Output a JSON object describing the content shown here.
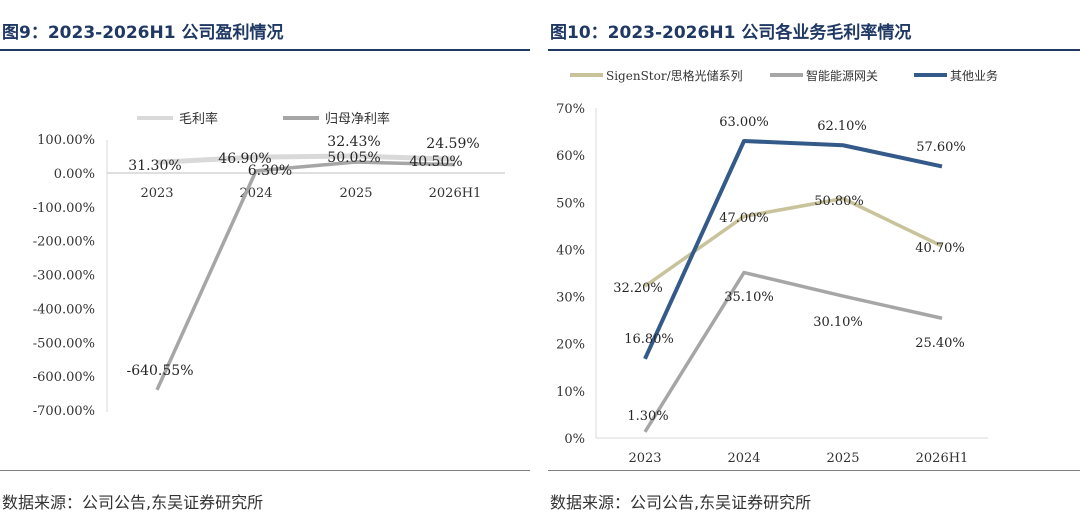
{
  "charts": [
    {
      "title": "图9：2023-2026H1 公司盈利情况",
      "source": "数据来源：公司公告,东吴证券研究所",
      "chart_data": {
        "type": "line",
        "categories": [
          "2023",
          "2024",
          "2025",
          "2026H1"
        ],
        "series": [
          {
            "name": "毛利率",
            "values": [
              31.3,
              46.9,
              50.05,
              40.5
            ],
            "labels": [
              "31.30%",
              "46.90%",
              "50.05%",
              "40.50%"
            ],
            "color": "#d9d9d9"
          },
          {
            "name": "归母净利率",
            "values": [
              -640.55,
              6.3,
              32.43,
              24.59
            ],
            "labels": [
              "-640.55%",
              "6.30%",
              "32.43%",
              "24.59%"
            ],
            "color": "#a6a6a6"
          }
        ],
        "ylim": [
          -700,
          100
        ],
        "yticks": [
          "100.00%",
          "0.00%",
          "-100.00%",
          "-200.00%",
          "-300.00%",
          "-400.00%",
          "-500.00%",
          "-600.00%",
          "-700.00%"
        ],
        "legend_position": "top"
      }
    },
    {
      "title": "图10：2023-2026H1 公司各业务毛利率情况",
      "source": "数据来源：公司公告,东吴证券研究所",
      "chart_data": {
        "type": "line",
        "categories": [
          "2023",
          "2024",
          "2025",
          "2026H1"
        ],
        "series": [
          {
            "name": "SigenStor/思格光储系列",
            "values": [
              32.2,
              47.0,
              50.8,
              40.7
            ],
            "labels": [
              "32.20%",
              "47.00%",
              "50.80%",
              "40.70%"
            ],
            "color": "#c9c39b"
          },
          {
            "name": "智能能源网关",
            "values": [
              1.3,
              35.1,
              30.1,
              25.4
            ],
            "labels": [
              "1.30%",
              "35.10%",
              "30.10%",
              "25.40%"
            ],
            "color": "#a6a6a6"
          },
          {
            "name": "其他业务",
            "values": [
              16.8,
              63.0,
              62.1,
              57.6
            ],
            "labels": [
              "16.80%",
              "63.00%",
              "62.10%",
              "57.60%"
            ],
            "color": "#345a8a"
          }
        ],
        "ylim": [
          0,
          70
        ],
        "yticks": [
          "70%",
          "60%",
          "50%",
          "40%",
          "30%",
          "20%",
          "10%",
          "0%"
        ],
        "legend_position": "top"
      }
    }
  ]
}
